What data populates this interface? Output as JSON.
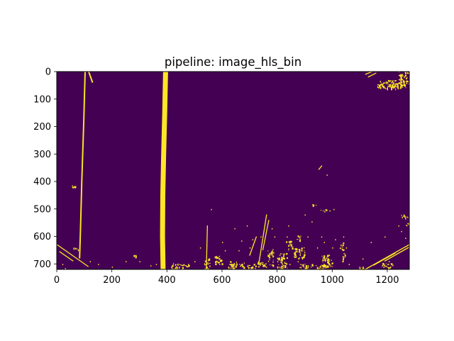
{
  "chart_data": {
    "type": "heatmap",
    "title": "pipeline: image_hls_bin",
    "xlim": [
      0,
      1280
    ],
    "ylim": [
      720,
      0
    ],
    "xticks": [
      0,
      200,
      400,
      600,
      800,
      1000,
      1200
    ],
    "yticks": [
      0,
      100,
      200,
      300,
      400,
      500,
      600,
      700
    ],
    "xlabel": "",
    "ylabel": "",
    "colors": {
      "background": "#440154",
      "foreground": "#fde725"
    },
    "lane_polylines": [
      {
        "width": 5,
        "points": [
          [
            103,
            0
          ],
          [
            98,
            180
          ],
          [
            91,
            400
          ],
          [
            86,
            580
          ],
          [
            83,
            680
          ]
        ]
      },
      {
        "width": 5,
        "points": [
          [
            116,
            0
          ],
          [
            130,
            40
          ]
        ]
      },
      {
        "width": 18,
        "points": [
          [
            395,
            0
          ],
          [
            392,
            150
          ],
          [
            388,
            300
          ],
          [
            385,
            450
          ],
          [
            384,
            600
          ],
          [
            386,
            720
          ]
        ]
      }
    ],
    "segments": [
      [
        1,
        630,
        115,
        710
      ],
      [
        10,
        655,
        60,
        690
      ],
      [
        1120,
        720,
        1280,
        630
      ],
      [
        1190,
        690,
        1278,
        640
      ],
      [
        1150,
        705,
        1230,
        660
      ],
      [
        735,
        690,
        762,
        520
      ],
      [
        748,
        650,
        770,
        540
      ],
      [
        700,
        670,
        725,
        600
      ],
      [
        543,
        720,
        547,
        560
      ],
      [
        1120,
        10,
        1145,
        0
      ],
      [
        1130,
        20,
        1160,
        5
      ],
      [
        951,
        357,
        963,
        342
      ]
    ],
    "blobs": [
      [
        1160,
        30,
        120,
        32
      ],
      [
        1240,
        0,
        36,
        40
      ],
      [
        1200,
        45,
        60,
        10
      ],
      [
        960,
        665,
        28,
        55
      ],
      [
        980,
        680,
        20,
        30
      ],
      [
        860,
        640,
        40,
        40
      ],
      [
        800,
        660,
        36,
        55
      ],
      [
        720,
        690,
        40,
        20
      ],
      [
        765,
        645,
        20,
        60
      ],
      [
        535,
        680,
        20,
        40
      ],
      [
        570,
        670,
        30,
        30
      ],
      [
        620,
        690,
        60,
        25
      ],
      [
        690,
        700,
        30,
        15
      ],
      [
        880,
        700,
        50,
        20
      ],
      [
        940,
        700,
        35,
        20
      ],
      [
        1090,
        710,
        30,
        8
      ],
      [
        1025,
        620,
        15,
        30
      ],
      [
        1035,
        660,
        10,
        30
      ],
      [
        1180,
        695,
        40,
        18
      ],
      [
        1250,
        520,
        25,
        18
      ],
      [
        1260,
        550,
        18,
        14
      ],
      [
        955,
        500,
        25,
        8
      ],
      [
        925,
        480,
        20,
        8
      ],
      [
        415,
        695,
        30,
        25
      ],
      [
        445,
        700,
        40,
        12
      ],
      [
        275,
        665,
        15,
        10
      ],
      [
        55,
        410,
        15,
        10
      ],
      [
        60,
        640,
        20,
        8
      ],
      [
        830,
        615,
        25,
        30
      ],
      [
        870,
        595,
        15,
        20
      ]
    ],
    "specks": [
      [
        1240,
        560
      ],
      [
        1250,
        580
      ],
      [
        1180,
        705
      ],
      [
        1050,
        640
      ],
      [
        1005,
        500
      ],
      [
        990,
        505
      ],
      [
        980,
        375
      ],
      [
        925,
        545
      ],
      [
        840,
        560
      ],
      [
        835,
        600
      ],
      [
        900,
        520
      ],
      [
        910,
        600
      ],
      [
        845,
        700
      ],
      [
        875,
        690
      ],
      [
        820,
        705
      ],
      [
        1010,
        610
      ],
      [
        1000,
        640
      ],
      [
        1060,
        700
      ],
      [
        1100,
        715
      ],
      [
        600,
        620
      ],
      [
        610,
        650
      ],
      [
        590,
        700
      ],
      [
        630,
        700
      ],
      [
        650,
        710
      ],
      [
        480,
        705
      ],
      [
        500,
        690
      ],
      [
        520,
        640
      ],
      [
        560,
        500
      ],
      [
        645,
        570
      ],
      [
        660,
        650
      ],
      [
        670,
        615
      ],
      [
        700,
        640
      ],
      [
        690,
        560
      ],
      [
        710,
        610
      ],
      [
        780,
        570
      ],
      [
        790,
        600
      ],
      [
        740,
        600
      ],
      [
        760,
        710
      ],
      [
        880,
        650
      ],
      [
        960,
        600
      ],
      [
        945,
        640
      ],
      [
        970,
        620
      ],
      [
        1040,
        600
      ],
      [
        1110,
        680
      ],
      [
        1140,
        620
      ],
      [
        1190,
        600
      ],
      [
        1205,
        690
      ],
      [
        1265,
        605
      ],
      [
        300,
        690
      ],
      [
        250,
        690
      ],
      [
        340,
        705
      ],
      [
        360,
        700
      ],
      [
        20,
        700
      ],
      [
        30,
        715
      ],
      [
        150,
        700
      ],
      [
        120,
        690
      ],
      [
        200,
        710
      ]
    ]
  }
}
